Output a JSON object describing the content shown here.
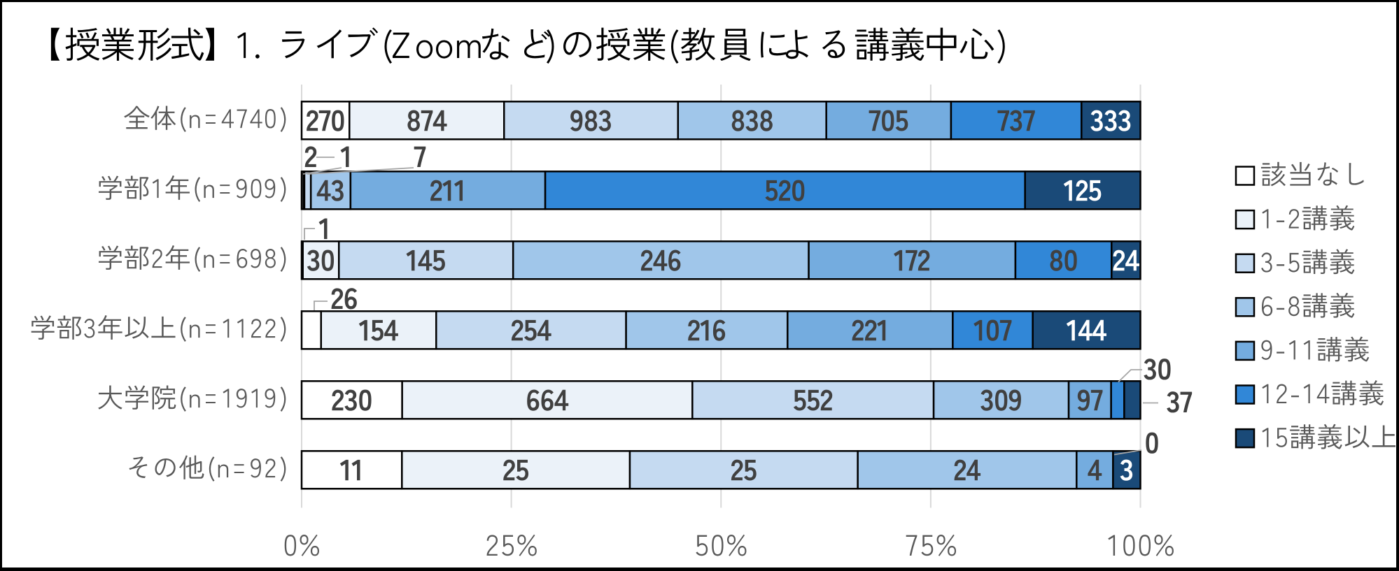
{
  "window": {
    "background": "#FFFFFF",
    "border_color": "#000000"
  },
  "chart_data": {
    "type": "bar",
    "variant": "horizontal-stacked-100pct",
    "title": "【授業形式】 1. ライブ(Zoomなど)の授業(教員による講義中心)",
    "categories": [
      "全体(n=4740)",
      "学部1年(n=909)",
      "学部2年(n=698)",
      "学部3年以上(n=1122)",
      "大学院(n=1919)",
      "その他(n=92)"
    ],
    "category_totals": [
      4740,
      909,
      698,
      1122,
      1919,
      92
    ],
    "series": [
      {
        "name": "該当なし",
        "color": "#FFFFFF",
        "values": [
          270,
          2,
          1,
          26,
          230,
          11
        ]
      },
      {
        "name": "1-2講義",
        "color": "#EBF2F9",
        "values": [
          874,
          1,
          30,
          154,
          664,
          25
        ]
      },
      {
        "name": "3-5講義",
        "color": "#C5DAF1",
        "values": [
          983,
          7,
          145,
          254,
          552,
          25
        ]
      },
      {
        "name": "6-8講義",
        "color": "#A0C6EA",
        "values": [
          838,
          43,
          246,
          216,
          309,
          24
        ]
      },
      {
        "name": "9-11講義",
        "color": "#74ACDF",
        "values": [
          705,
          211,
          172,
          221,
          97,
          4
        ]
      },
      {
        "name": "12-14講義",
        "color": "#3187D7",
        "values": [
          737,
          520,
          80,
          107,
          30,
          0
        ]
      },
      {
        "name": "15講義以上",
        "color": "#1A4A78",
        "values": [
          333,
          125,
          24,
          144,
          37,
          3
        ]
      }
    ],
    "x_axis": {
      "tick_labels": [
        "0%",
        "25%",
        "50%",
        "75%",
        "100%"
      ],
      "range_pct": [
        0,
        100
      ],
      "gridlines": true
    },
    "legend": {
      "position": "right",
      "items": [
        "該当なし",
        "1-2講義",
        "3-5講義",
        "6-8講義",
        "9-11講義",
        "12-14講義",
        "15講義以上"
      ]
    },
    "styles": {
      "title_color": "#000000",
      "axis_text_color": "#595959",
      "data_label_color": "#404040",
      "data_label_color_on_dark": "#FFFFFF",
      "bar_border_color": "#000000",
      "gridline_color": "#D9D9D9",
      "leader_line_color": "#A6A6A6"
    }
  }
}
